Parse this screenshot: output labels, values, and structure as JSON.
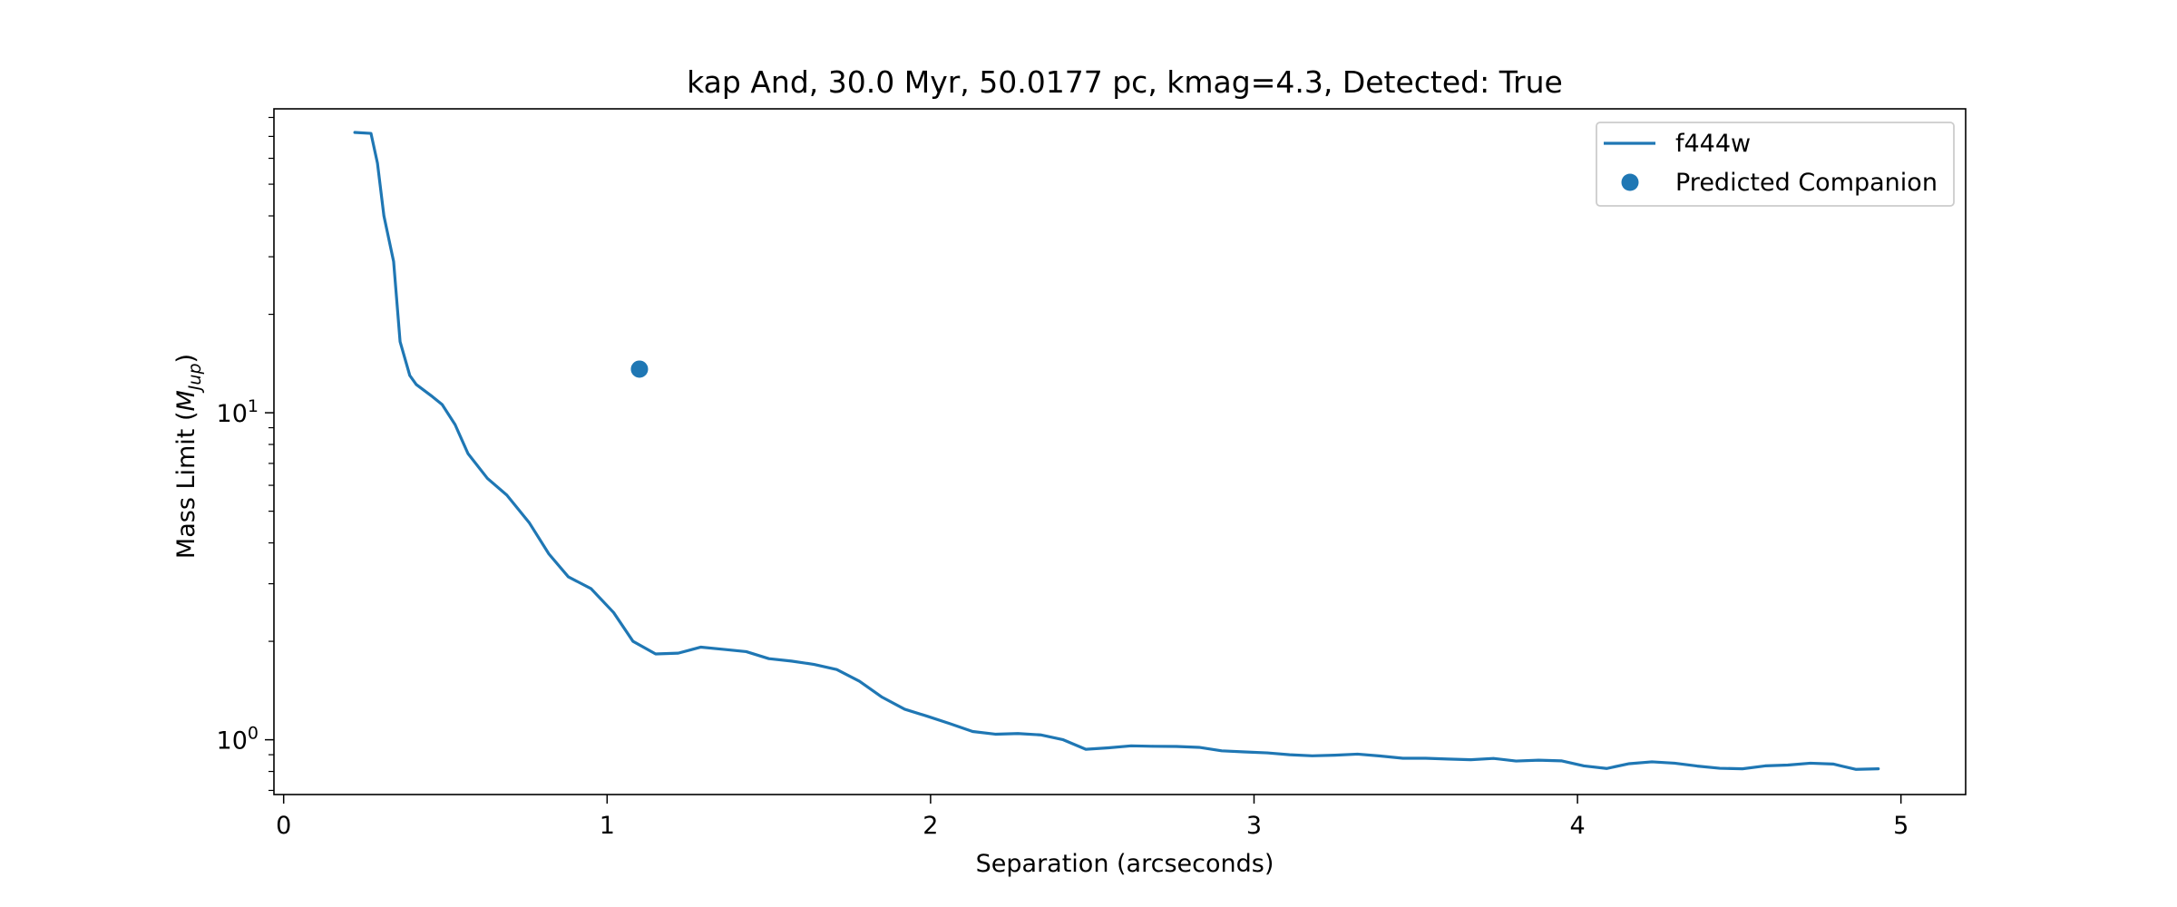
{
  "chart_data": {
    "type": "line",
    "title": "kap And, 30.0 Myr, 50.0177 pc, kmag=4.3, Detected: True",
    "xlabel": "Separation (arcseconds)",
    "ylabel": "Mass Limit ($M_{Jup}$)",
    "ylabel_parts": {
      "prefix": "Mass Limit (",
      "italic_main": "M",
      "italic_sub": "Jup",
      "suffix": ")"
    },
    "xlim": [
      -0.03,
      5.2
    ],
    "ylim": [
      0.68,
      85
    ],
    "yscale": "log",
    "x_ticks": [
      {
        "value": 0,
        "label": "0"
      },
      {
        "value": 1,
        "label": "1"
      },
      {
        "value": 2,
        "label": "2"
      },
      {
        "value": 3,
        "label": "3"
      },
      {
        "value": 4,
        "label": "4"
      },
      {
        "value": 5,
        "label": "5"
      }
    ],
    "y_major_ticks": [
      {
        "value": 1,
        "base": "10",
        "exp": "0"
      },
      {
        "value": 10,
        "base": "10",
        "exp": "1"
      }
    ],
    "y_minor_ticks": [
      0.7,
      0.8,
      0.9,
      2,
      3,
      4,
      5,
      6,
      7,
      8,
      9,
      20,
      30,
      40,
      50,
      60,
      70,
      80
    ],
    "grid": false,
    "legend_position": "top-right",
    "series": [
      {
        "name": "f444w",
        "kind": "line",
        "color": "#1f77b4",
        "x": [
          0.22,
          0.27,
          0.29,
          0.31,
          0.34,
          0.36,
          0.39,
          0.41,
          0.46,
          0.49,
          0.53,
          0.57,
          0.63,
          0.69,
          0.76,
          0.82,
          0.88,
          0.95,
          1.02,
          1.08,
          1.15,
          1.22,
          1.29,
          1.36,
          1.43,
          1.5,
          1.57,
          1.64,
          1.71,
          1.78,
          1.85,
          1.92,
          1.99,
          2.06,
          2.13,
          2.2,
          2.27,
          2.34,
          2.41,
          2.48,
          2.55,
          2.62,
          2.69,
          2.76,
          2.83,
          2.9,
          2.97,
          3.04,
          3.11,
          3.18,
          3.25,
          3.32,
          3.39,
          3.46,
          3.53,
          3.6,
          3.67,
          3.74,
          3.81,
          3.88,
          3.95,
          4.02,
          4.09,
          4.16,
          4.23,
          4.3,
          4.37,
          4.44,
          4.51,
          4.58,
          4.65,
          4.72,
          4.79,
          4.86,
          4.93
        ],
        "y": [
          72,
          71.5,
          58,
          40,
          29,
          16.5,
          13,
          12.2,
          11.2,
          10.6,
          9.2,
          7.5,
          6.3,
          5.6,
          4.6,
          3.7,
          3.15,
          2.9,
          2.45,
          2.0,
          1.83,
          1.84,
          1.92,
          1.89,
          1.86,
          1.77,
          1.74,
          1.7,
          1.64,
          1.51,
          1.35,
          1.24,
          1.18,
          1.12,
          1.06,
          1.04,
          1.045,
          1.035,
          1.0,
          0.935,
          0.945,
          0.958,
          0.955,
          0.954,
          0.948,
          0.925,
          0.918,
          0.912,
          0.9,
          0.893,
          0.897,
          0.904,
          0.892,
          0.878,
          0.878,
          0.873,
          0.869,
          0.877,
          0.861,
          0.866,
          0.862,
          0.832,
          0.817,
          0.845,
          0.856,
          0.848,
          0.831,
          0.818,
          0.815,
          0.832,
          0.837,
          0.848,
          0.843,
          0.812,
          0.815
        ]
      },
      {
        "name": "Predicted Companion",
        "kind": "scatter",
        "color": "#1f77b4",
        "x": [
          1.1
        ],
        "y": [
          13.6
        ]
      }
    ]
  }
}
